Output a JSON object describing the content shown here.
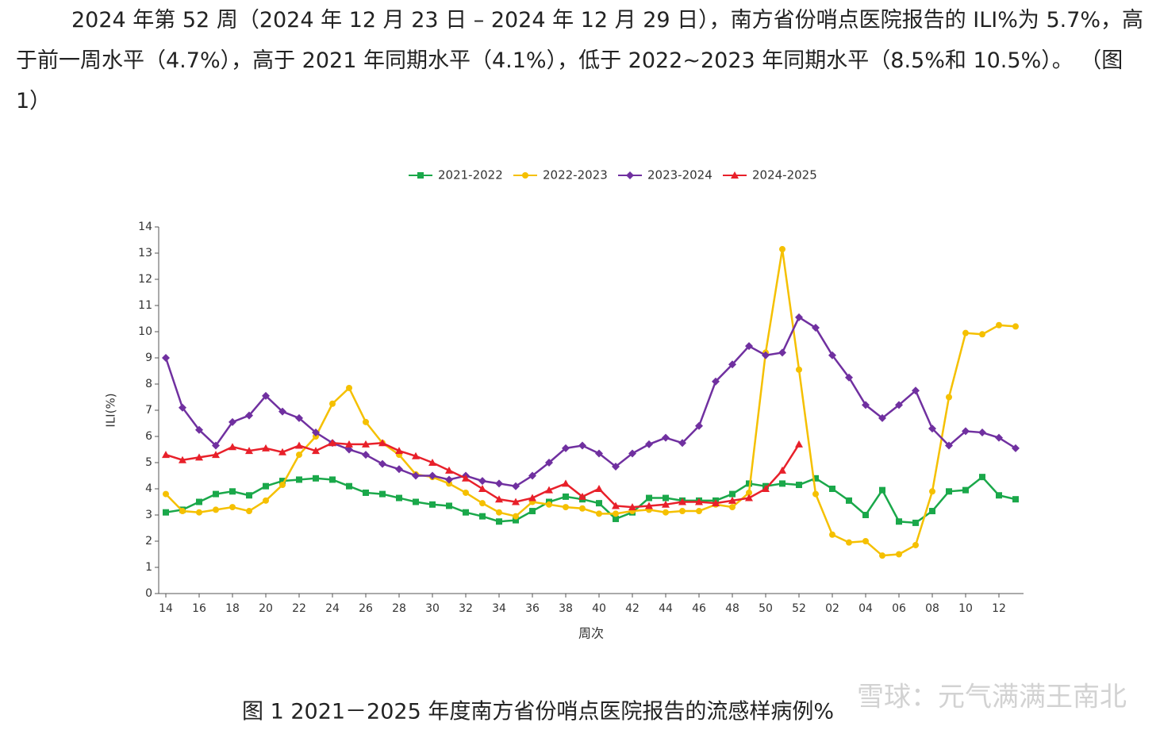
{
  "paragraph": "2024 年第 52 周（2024 年 12 月 23 日 – 2024 年 12 月 29 日），南方省份哨点医院报告的 ILI%为 5.7%，高于前一周水平（4.7%），高于 2021 年同期水平（4.1%），低于 2022~2023 年同期水平（8.5%和 10.5%）。 （图 1）",
  "chart_data": {
    "type": "line",
    "caption": "图 1    2021－2025 年度南方省份哨点医院报告的流感样病例%",
    "xlabel": "周次",
    "ylabel": "ILI(%)",
    "categories": [
      "14",
      null,
      "16",
      null,
      "18",
      null,
      "20",
      null,
      "22",
      null,
      "24",
      null,
      "26",
      null,
      "28",
      null,
      "30",
      null,
      "32",
      null,
      "34",
      null,
      "36",
      null,
      "38",
      null,
      "40",
      null,
      "42",
      null,
      "44",
      null,
      "46",
      null,
      "48",
      null,
      "50",
      null,
      "52",
      null,
      "02",
      null,
      "04",
      null,
      "06",
      null,
      "08",
      null,
      "10",
      null,
      "12",
      null
    ],
    "ylim": [
      0,
      14
    ],
    "yticks": [
      0,
      1,
      2,
      3,
      4,
      5,
      6,
      7,
      8,
      9,
      10,
      11,
      12,
      13,
      14
    ],
    "legend": "top",
    "series": [
      {
        "name": "2021-2022",
        "color": "#1aa84a",
        "marker": "square",
        "values": [
          3.1,
          3.2,
          3.5,
          3.8,
          3.9,
          3.75,
          4.1,
          4.3,
          4.35,
          4.4,
          4.35,
          4.1,
          3.85,
          3.8,
          3.65,
          3.5,
          3.4,
          3.35,
          3.1,
          2.95,
          2.75,
          2.8,
          3.15,
          3.5,
          3.7,
          3.6,
          3.45,
          2.85,
          3.1,
          3.65,
          3.65,
          3.55,
          3.55,
          3.55,
          3.8,
          4.2,
          4.1,
          4.2,
          4.15,
          4.4,
          4.0,
          3.55,
          3.0,
          3.95,
          2.75,
          2.7,
          3.15,
          3.9,
          3.95,
          4.45,
          3.75,
          3.6
        ]
      },
      {
        "name": "2022-2023",
        "color": "#f5c000",
        "marker": "circle",
        "values": [
          3.8,
          3.15,
          3.1,
          3.2,
          3.3,
          3.15,
          3.55,
          4.15,
          5.3,
          6.0,
          7.25,
          7.85,
          6.55,
          5.75,
          5.3,
          4.55,
          4.45,
          4.2,
          3.85,
          3.45,
          3.1,
          2.95,
          3.5,
          3.4,
          3.3,
          3.25,
          3.05,
          3.05,
          3.15,
          3.2,
          3.1,
          3.15,
          3.15,
          3.4,
          3.3,
          3.85,
          9.2,
          13.15,
          8.55,
          3.8,
          2.25,
          1.95,
          2.0,
          1.45,
          1.5,
          1.85,
          3.9,
          7.5,
          9.95,
          9.9,
          10.25,
          10.2
        ]
      },
      {
        "name": "2023-2024",
        "color": "#7030a0",
        "marker": "diamond",
        "values": [
          9.0,
          7.1,
          6.25,
          5.65,
          6.55,
          6.8,
          7.55,
          6.95,
          6.7,
          6.15,
          5.75,
          5.5,
          5.3,
          4.95,
          4.75,
          4.5,
          4.5,
          4.35,
          4.5,
          4.3,
          4.2,
          4.1,
          4.5,
          5.0,
          5.55,
          5.65,
          5.35,
          4.85,
          5.35,
          5.7,
          5.95,
          5.75,
          6.4,
          8.1,
          8.75,
          9.45,
          9.1,
          9.2,
          10.55,
          10.15,
          9.1,
          8.25,
          7.2,
          6.7,
          7.2,
          7.75,
          6.3,
          5.65,
          6.2,
          6.15,
          5.95,
          5.55
        ]
      },
      {
        "name": "2024-2025",
        "color": "#e8202a",
        "marker": "triangle",
        "values": [
          5.3,
          5.1,
          5.2,
          5.3,
          5.6,
          5.45,
          5.55,
          5.4,
          5.65,
          5.45,
          5.75,
          5.7,
          5.7,
          5.75,
          5.45,
          5.25,
          5.0,
          4.7,
          4.4,
          4.0,
          3.6,
          3.5,
          3.65,
          3.95,
          4.2,
          3.7,
          4.0,
          3.35,
          3.3,
          3.35,
          3.4,
          3.5,
          3.5,
          3.45,
          3.55,
          3.65,
          4.0,
          4.7,
          5.7,
          null,
          null,
          null,
          null,
          null,
          null,
          null,
          null,
          null,
          null,
          null,
          null,
          null
        ]
      }
    ]
  },
  "watermark": "雪球：元气满满王南北"
}
